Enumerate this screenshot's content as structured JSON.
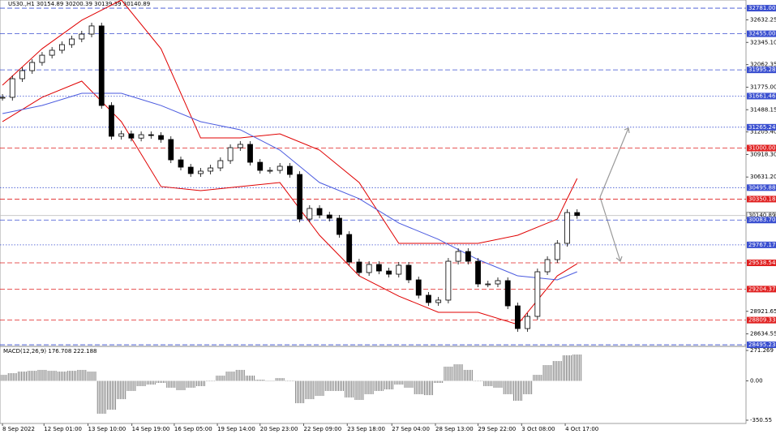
{
  "chart_data": {
    "type": "candlestick",
    "title": "US30.,H1 30154.89 30200.39 30139.39 30140.89",
    "xlim": [
      -0.25,
      74.8
    ],
    "xticks": [
      {
        "value": 0,
        "label": "8 Sep 2022"
      },
      {
        "value": 4.19,
        "label": "12 Sep 01:00"
      },
      {
        "value": 8.63,
        "label": "13 Sep 10:00"
      },
      {
        "value": 13.06,
        "label": "14 Sep 19:00"
      },
      {
        "value": 17.34,
        "label": "16 Sep 05:00"
      },
      {
        "value": 21.69,
        "label": "19 Sep 14:00"
      },
      {
        "value": 26.0,
        "label": "20 Sep 23:00"
      },
      {
        "value": 30.4,
        "label": "22 Sep 09:00"
      },
      {
        "value": 34.8,
        "label": "23 Sep 18:00"
      },
      {
        "value": 39.3,
        "label": "27 Sep 04:00"
      },
      {
        "value": 43.7,
        "label": "28 Sep 13:00"
      },
      {
        "value": 48.0,
        "label": "29 Sep 22:00"
      },
      {
        "value": 52.4,
        "label": "3 Oct 08:00"
      },
      {
        "value": 56.8,
        "label": "4 Oct 17:00"
      }
    ],
    "ylim": [
      28475,
      32885
    ],
    "yticks": [
      {
        "value": 32632.25,
        "label": "32632.25"
      },
      {
        "value": 32345.1,
        "label": "32345.10"
      },
      {
        "value": 32062.35,
        "label": "32062.35"
      },
      {
        "value": 31775,
        "label": "31775.00"
      },
      {
        "value": 31488.15,
        "label": "31488.15"
      },
      {
        "value": 31205.4,
        "label": "31205.40"
      },
      {
        "value": 30918.3,
        "label": "30918.30"
      },
      {
        "value": 30631.2,
        "label": "30631.20"
      },
      {
        "value": 28921.65,
        "label": "28921.65"
      },
      {
        "value": 28634.55,
        "label": "28634.55"
      }
    ],
    "up_color": "#ffffff",
    "down_color": "#000000",
    "closes": [
      31646,
      31883,
      31986,
      32090,
      32182,
      32245,
      32317,
      32389,
      32451,
      32555,
      31542,
      31150,
      31181,
      31127,
      31170,
      31160,
      31109,
      30850,
      30757,
      30675,
      30706,
      30747,
      30840,
      31005,
      31047,
      30819,
      30716,
      30716,
      30768,
      30664,
      30096,
      30231,
      30148,
      30107,
      29900,
      29549,
      29415,
      29518,
      29435,
      29394,
      29508,
      29322,
      29126,
      29033,
      29064,
      29559,
      29683,
      29559,
      29270,
      29270,
      29312,
      28991,
      28702,
      28857,
      29425,
      29580,
      29787,
      30179,
      30141
    ],
    "series": [
      {
        "name": "Upper band",
        "color": "#e00000",
        "x": [
          0,
          4,
          8,
          12,
          16,
          20,
          24,
          28,
          32,
          36,
          40,
          44,
          48,
          52,
          56,
          58
        ],
        "values": [
          31801,
          32265,
          32627,
          32885,
          32265,
          31129,
          31129,
          31181,
          30974,
          30561,
          29787,
          29787,
          29787,
          29890,
          30096,
          30613
        ]
      },
      {
        "name": "Lower band",
        "color": "#e00000",
        "x": [
          0,
          4,
          8,
          12,
          16,
          20,
          24,
          28,
          32,
          36,
          40,
          44,
          48,
          52,
          56,
          58
        ],
        "values": [
          31336,
          31646,
          31852,
          31336,
          30510,
          30458,
          30510,
          30561,
          29890,
          29373,
          29115,
          28909,
          28909,
          28754,
          29373,
          29528
        ]
      },
      {
        "name": "Moving average",
        "color": "#4a5adf",
        "x": [
          0,
          4,
          8,
          12,
          16,
          20,
          24,
          28,
          32,
          36,
          40,
          44,
          48,
          52,
          56,
          58
        ],
        "values": [
          31439,
          31542,
          31697,
          31697,
          31542,
          31336,
          31233,
          30974,
          30561,
          30355,
          30045,
          29838,
          29580,
          29373,
          29322,
          29425
        ]
      }
    ],
    "levels": [
      {
        "value": 32781,
        "label": "32781.00",
        "color": "#3a4fd0",
        "style": "dashed"
      },
      {
        "value": 32455,
        "label": "32455.00",
        "color": "#3a4fd0",
        "style": "dashed"
      },
      {
        "value": 31995.28,
        "label": "31995.28",
        "color": "#3a4fd0",
        "style": "dashed"
      },
      {
        "value": 31661.46,
        "label": "31661.46",
        "color": "#3a4fd0",
        "style": "dotted"
      },
      {
        "value": 31265.24,
        "label": "31265.24",
        "color": "#3a4fd0",
        "style": "dotted"
      },
      {
        "value": 31000,
        "label": "31000.00",
        "color": "#e02020",
        "style": "dashed"
      },
      {
        "value": 30495.88,
        "label": "30495.88",
        "color": "#3a4fd0",
        "style": "dotted"
      },
      {
        "value": 30350.18,
        "label": "30350.18",
        "color": "#e02020",
        "style": "dashed"
      },
      {
        "value": 30140.89,
        "label": "30140.89",
        "color": "#c0c0c0",
        "style": "solid"
      },
      {
        "value": 30083.7,
        "label": "30083.70",
        "color": "#3a4fd0",
        "style": "dashed"
      },
      {
        "value": 29767.17,
        "label": "29767.17",
        "color": "#3a4fd0",
        "style": "dotted"
      },
      {
        "value": 29538.54,
        "label": "29538.54",
        "color": "#e02020",
        "style": "dashed"
      },
      {
        "value": 29204.37,
        "label": "29204.37",
        "color": "#e02020",
        "style": "dashed"
      },
      {
        "value": 28809.33,
        "label": "28809.33",
        "color": "#e02020",
        "style": "dashed"
      },
      {
        "value": 28495.23,
        "label": "28495.23",
        "color": "#3a4fd0",
        "style": "dashed"
      }
    ],
    "macd": {
      "title": "MACD(12,26,9) 176.708 222.188",
      "color": "#808080",
      "ylim": [
        -379.5,
        300.2
      ],
      "yticks": [
        {
          "value": 271.269,
          "label": "271.269"
        },
        {
          "value": 0,
          "label": "0.00"
        },
        {
          "value": -350.55,
          "label": "-350.55"
        }
      ],
      "values": [
        54,
        69,
        83,
        90,
        98,
        90,
        83,
        90,
        98,
        83,
        -293,
        -257,
        -163,
        -90,
        -47,
        -33,
        -18,
        -61,
        -83,
        -61,
        -47,
        -4,
        47,
        83,
        98,
        47,
        11,
        -4,
        25,
        -4,
        -199,
        -163,
        -134,
        -90,
        -90,
        -148,
        -170,
        -119,
        -90,
        -76,
        -33,
        -61,
        -119,
        -127,
        -18,
        127,
        148,
        98,
        -4,
        -47,
        -61,
        -119,
        -177,
        -119,
        54,
        141,
        177,
        228,
        235
      ]
    }
  }
}
